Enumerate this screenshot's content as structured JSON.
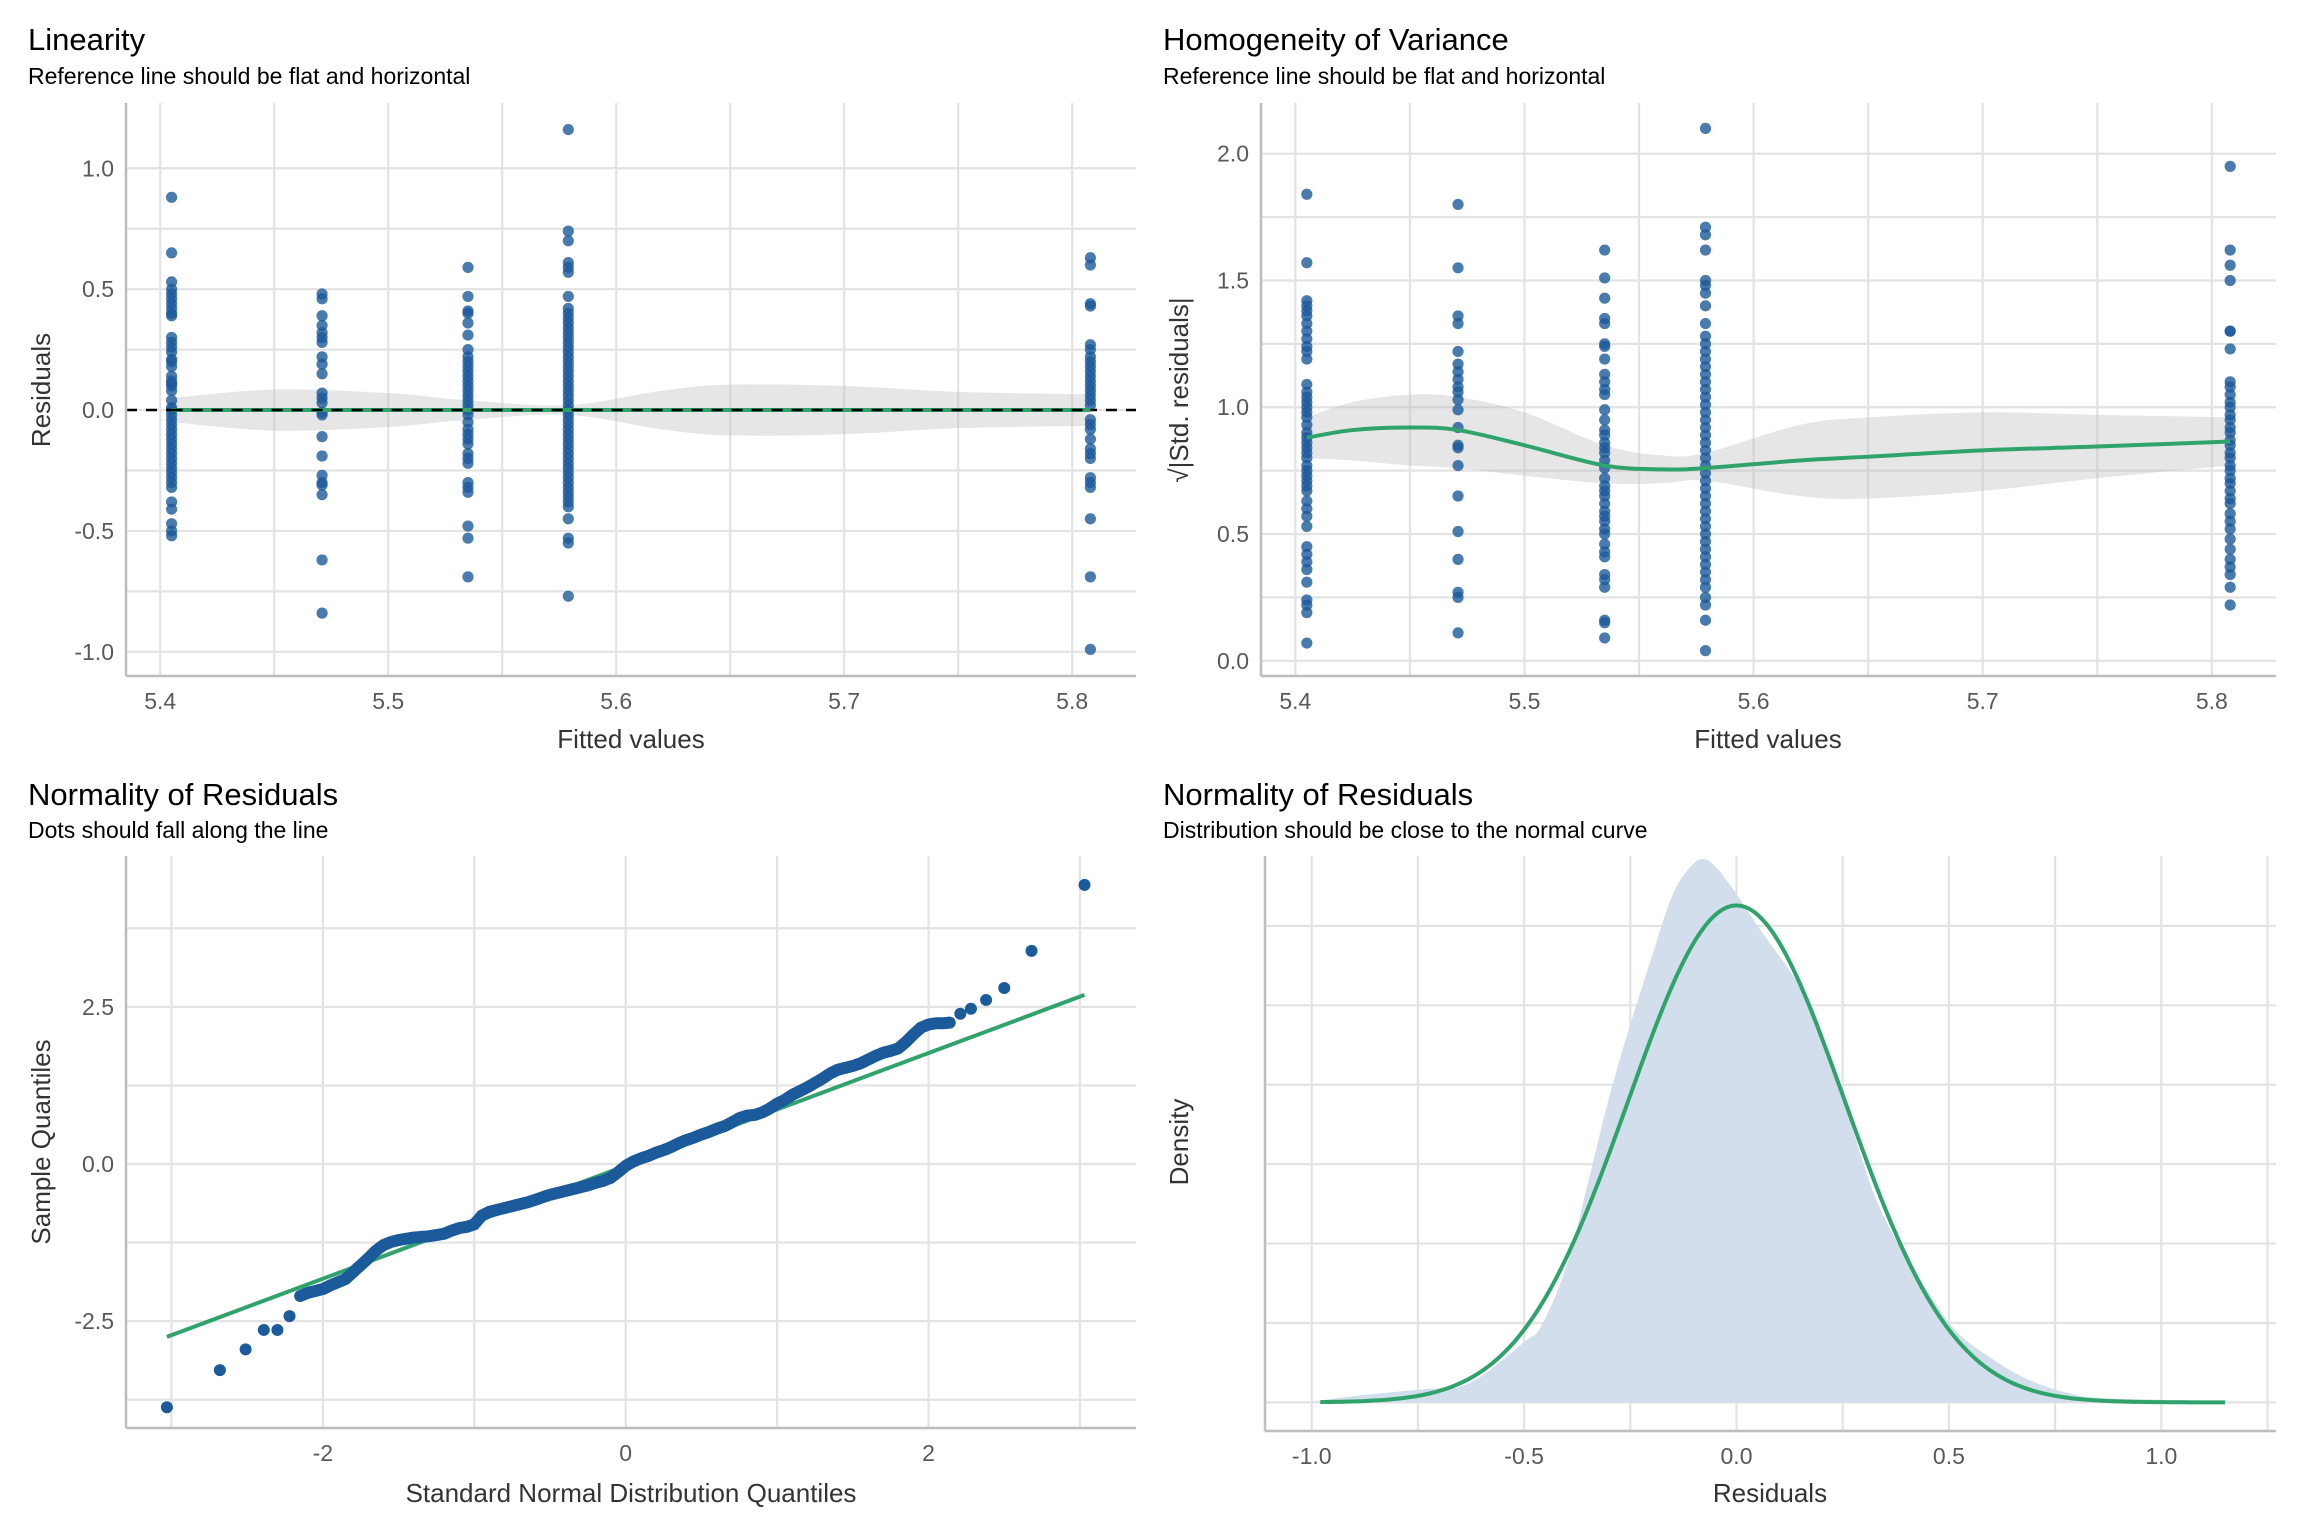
{
  "chart_data": [
    {
      "id": "linearity",
      "type": "scatter",
      "title": "Linearity",
      "subtitle": "Reference line should be flat and horizontal",
      "xlabel": "Fitted values",
      "ylabel": "Residuals",
      "xlim": [
        5.385,
        5.828
      ],
      "ylim": [
        -1.1,
        1.27
      ],
      "xticks": [
        5.4,
        5.5,
        5.6,
        5.7,
        5.8
      ],
      "xtick_labels": [
        "5.4",
        "5.5",
        "5.6",
        "5.7",
        "5.8"
      ],
      "xminor": [
        5.45,
        5.55,
        5.65,
        5.75
      ],
      "yticks": [
        -1.0,
        -0.5,
        0.0,
        0.5,
        1.0
      ],
      "ytick_labels": [
        "-1.0",
        "-0.5",
        "0.0",
        "0.5",
        "1.0"
      ],
      "yminor": [
        -0.75,
        -0.25,
        0.25,
        0.75
      ],
      "grid": true,
      "reference_line": {
        "y": 0,
        "style": "dashed",
        "color": "#000000"
      },
      "point_color": "#1b5a9b",
      "columns": [
        {
          "x": 5.405,
          "y": [
            0.88,
            0.65,
            0.53,
            0.5,
            0.48,
            0.46,
            0.44,
            0.42,
            0.4,
            0.39,
            0.3,
            0.28,
            0.26,
            0.24,
            0.21,
            0.2,
            0.18,
            0.14,
            0.12,
            0.11,
            0.1,
            0.08,
            0.04,
            0.01,
            0.0,
            -0.02,
            -0.04,
            -0.06,
            -0.08,
            -0.1,
            -0.12,
            -0.14,
            -0.16,
            -0.18,
            -0.2,
            -0.22,
            -0.24,
            -0.26,
            -0.28,
            -0.3,
            -0.32,
            -0.38,
            -0.41,
            -0.47,
            -0.5,
            -0.52
          ]
        },
        {
          "x": 5.471,
          "y": [
            0.48,
            0.46,
            0.39,
            0.35,
            0.32,
            0.3,
            0.28,
            0.22,
            0.19,
            0.15,
            0.07,
            0.05,
            0.03,
            -0.01,
            -0.02,
            -0.11,
            -0.19,
            -0.27,
            -0.3,
            -0.31,
            -0.35,
            -0.62,
            -0.84
          ]
        },
        {
          "x": 5.535,
          "y": [
            0.59,
            0.47,
            0.41,
            0.4,
            0.36,
            0.31,
            0.25,
            0.22,
            0.2,
            0.18,
            0.16,
            0.14,
            0.12,
            0.1,
            0.08,
            0.06,
            0.04,
            0.02,
            0.0,
            -0.02,
            -0.05,
            -0.08,
            -0.1,
            -0.12,
            -0.14,
            -0.18,
            -0.2,
            -0.22,
            -0.3,
            -0.32,
            -0.34,
            -0.48,
            -0.53,
            -0.69
          ]
        },
        {
          "x": 5.579,
          "y": [
            1.16,
            0.74,
            0.7,
            0.61,
            0.59,
            0.57,
            0.47,
            0.42,
            0.4,
            0.38,
            0.36,
            0.34,
            0.32,
            0.3,
            0.28,
            0.26,
            0.24,
            0.22,
            0.2,
            0.18,
            0.16,
            0.14,
            0.12,
            0.1,
            0.08,
            0.06,
            0.04,
            0.02,
            0.0,
            -0.02,
            -0.04,
            -0.06,
            -0.08,
            -0.1,
            -0.12,
            -0.14,
            -0.16,
            -0.18,
            -0.2,
            -0.22,
            -0.24,
            -0.26,
            -0.28,
            -0.3,
            -0.32,
            -0.34,
            -0.36,
            -0.38,
            -0.4,
            -0.45,
            -0.53,
            -0.55,
            -0.77
          ]
        },
        {
          "x": 5.808,
          "y": [
            0.63,
            0.6,
            0.44,
            0.43,
            0.27,
            0.25,
            0.22,
            0.2,
            0.18,
            0.16,
            0.14,
            0.12,
            0.1,
            0.08,
            0.06,
            0.04,
            0.02,
            -0.04,
            -0.06,
            -0.08,
            -0.12,
            -0.16,
            -0.18,
            -0.2,
            -0.28,
            -0.3,
            -0.32,
            -0.45,
            -0.69,
            -0.99
          ]
        }
      ],
      "smooth": {
        "color": "#2fa36b",
        "x": [
          5.405,
          5.45,
          5.5,
          5.535,
          5.579,
          5.62,
          5.65,
          5.7,
          5.75,
          5.808
        ],
        "y": [
          0,
          0,
          0,
          0,
          0,
          0,
          0,
          0,
          0,
          0
        ],
        "lower": [
          -0.05,
          -0.085,
          -0.07,
          -0.04,
          -0.02,
          -0.08,
          -0.105,
          -0.1,
          -0.075,
          -0.065
        ],
        "upper": [
          0.05,
          0.085,
          0.07,
          0.04,
          0.02,
          0.08,
          0.105,
          0.1,
          0.075,
          0.065
        ]
      }
    },
    {
      "id": "homogeneity",
      "type": "scatter",
      "title": "Homogeneity of Variance",
      "subtitle": "Reference line should be flat and horizontal",
      "xlabel": "Fitted values",
      "ylabel": "√|Std. residuals|",
      "xlim": [
        5.385,
        5.828
      ],
      "ylim": [
        -0.06,
        2.2
      ],
      "xticks": [
        5.4,
        5.5,
        5.6,
        5.7,
        5.8
      ],
      "xtick_labels": [
        "5.4",
        "5.5",
        "5.6",
        "5.7",
        "5.8"
      ],
      "xminor": [
        5.45,
        5.55,
        5.65,
        5.75
      ],
      "yticks": [
        0.0,
        0.5,
        1.0,
        1.5,
        2.0
      ],
      "ytick_labels": [
        "0.0",
        "0.5",
        "1.0",
        "1.5",
        "2.0"
      ],
      "yminor": [
        0.25,
        0.75,
        1.25,
        1.75
      ],
      "grid": true,
      "point_color": "#1b5a9b",
      "columns": [
        {
          "x": 5.405,
          "y": [
            1.84,
            1.57,
            1.42,
            1.4,
            1.38,
            1.36,
            1.33,
            1.3,
            1.27,
            1.24,
            1.22,
            1.19,
            1.09,
            1.06,
            1.04,
            1.02,
            1.0,
            0.98,
            0.96,
            0.93,
            0.9,
            0.88,
            0.86,
            0.84,
            0.82,
            0.8,
            0.77,
            0.75,
            0.73,
            0.71,
            0.69,
            0.67,
            0.63,
            0.6,
            0.57,
            0.53,
            0.45,
            0.42,
            0.39,
            0.36,
            0.31,
            0.24,
            0.22,
            0.19,
            0.07
          ]
        },
        {
          "x": 5.471,
          "y": [
            1.8,
            1.55,
            1.36,
            1.33,
            1.22,
            1.17,
            1.14,
            1.11,
            1.08,
            1.06,
            1.03,
            0.99,
            0.92,
            0.85,
            0.84,
            0.77,
            0.65,
            0.51,
            0.4,
            0.27,
            0.25,
            0.11
          ]
        },
        {
          "x": 5.535,
          "y": [
            1.62,
            1.51,
            1.43,
            1.35,
            1.33,
            1.25,
            1.24,
            1.19,
            1.13,
            1.1,
            1.07,
            1.05,
            0.99,
            0.95,
            0.91,
            0.89,
            0.86,
            0.84,
            0.82,
            0.79,
            0.76,
            0.72,
            0.69,
            0.67,
            0.65,
            0.62,
            0.59,
            0.57,
            0.55,
            0.52,
            0.5,
            0.46,
            0.43,
            0.41,
            0.34,
            0.32,
            0.29,
            0.16,
            0.15,
            0.09
          ]
        },
        {
          "x": 5.579,
          "y": [
            2.1,
            1.71,
            1.68,
            1.62,
            1.5,
            1.48,
            1.45,
            1.4,
            1.33,
            1.28,
            1.25,
            1.22,
            1.19,
            1.16,
            1.13,
            1.1,
            1.07,
            1.04,
            1.01,
            0.98,
            0.95,
            0.92,
            0.89,
            0.86,
            0.83,
            0.8,
            0.77,
            0.74,
            0.71,
            0.68,
            0.65,
            0.62,
            0.59,
            0.56,
            0.53,
            0.5,
            0.47,
            0.44,
            0.41,
            0.38,
            0.35,
            0.32,
            0.29,
            0.25,
            0.22,
            0.16,
            0.04
          ]
        },
        {
          "x": 5.808,
          "y": [
            1.95,
            1.62,
            1.56,
            1.5,
            1.3,
            1.3,
            1.23,
            1.1,
            1.08,
            1.05,
            1.02,
            1.0,
            0.97,
            0.95,
            0.92,
            0.9,
            0.87,
            0.85,
            0.82,
            0.8,
            0.77,
            0.75,
            0.72,
            0.7,
            0.67,
            0.64,
            0.62,
            0.58,
            0.55,
            0.52,
            0.48,
            0.44,
            0.4,
            0.37,
            0.34,
            0.29,
            0.22
          ]
        }
      ],
      "smooth": {
        "color": "#2fa36b",
        "x": [
          5.405,
          5.425,
          5.45,
          5.471,
          5.5,
          5.535,
          5.56,
          5.579,
          5.62,
          5.65,
          5.7,
          5.75,
          5.808
        ],
        "y": [
          0.88,
          0.91,
          0.92,
          0.91,
          0.85,
          0.77,
          0.755,
          0.76,
          0.79,
          0.805,
          0.83,
          0.845,
          0.865
        ],
        "lower": [
          0.8,
          0.79,
          0.77,
          0.76,
          0.73,
          0.7,
          0.7,
          0.71,
          0.65,
          0.64,
          0.67,
          0.72,
          0.77
        ],
        "upper": [
          0.96,
          1.02,
          1.05,
          1.04,
          0.98,
          0.85,
          0.81,
          0.82,
          0.93,
          0.96,
          0.98,
          0.97,
          0.96
        ]
      }
    },
    {
      "id": "qq",
      "type": "scatter",
      "title": "Normality of Residuals",
      "subtitle": "Dots should fall along the line",
      "xlabel": "Standard Normal Distribution Quantiles",
      "ylabel": "Sample Quantiles",
      "xlim": [
        -3.3,
        3.37
      ],
      "ylim": [
        -4.2,
        4.9
      ],
      "xticks": [
        -2,
        0,
        2
      ],
      "xtick_labels": [
        "-2",
        "0",
        "2"
      ],
      "xminor": [
        -3,
        -1,
        1,
        3
      ],
      "yticks": [
        -2.5,
        0.0,
        2.5
      ],
      "ytick_labels": [
        "-2.5",
        "0.0",
        "2.5"
      ],
      "yminor": [
        -3.75,
        -1.25,
        1.25,
        3.75
      ],
      "grid": true,
      "point_color": "#1b5a9b",
      "points": [
        [
          -3.03,
          -3.87
        ],
        [
          -2.68,
          -3.28
        ],
        [
          -2.51,
          -2.95
        ],
        [
          -2.39,
          -2.64
        ],
        [
          -2.3,
          -2.64
        ],
        [
          -2.22,
          -2.42
        ],
        [
          -2.15,
          -2.1
        ],
        [
          -2.1,
          -2.05
        ],
        [
          -2.05,
          -2.02
        ],
        [
          -2.0,
          -1.99
        ],
        [
          -1.95,
          -1.93
        ],
        [
          -1.9,
          -1.88
        ],
        [
          -1.85,
          -1.83
        ],
        [
          -1.8,
          -1.72
        ],
        [
          -1.75,
          -1.61
        ],
        [
          -1.7,
          -1.5
        ],
        [
          -1.65,
          -1.38
        ],
        [
          -1.6,
          -1.29
        ],
        [
          -1.55,
          -1.24
        ],
        [
          -1.5,
          -1.21
        ],
        [
          -1.45,
          -1.19
        ],
        [
          -1.4,
          -1.17
        ],
        [
          -1.35,
          -1.16
        ],
        [
          -1.3,
          -1.15
        ],
        [
          -1.25,
          -1.13
        ],
        [
          -1.2,
          -1.11
        ],
        [
          -1.15,
          -1.06
        ],
        [
          -1.1,
          -1.02
        ],
        [
          -1.05,
          -1.0
        ],
        [
          -1.0,
          -0.96
        ],
        [
          -0.95,
          -0.82
        ],
        [
          -0.9,
          -0.76
        ],
        [
          -0.85,
          -0.73
        ],
        [
          -0.8,
          -0.7
        ],
        [
          -0.75,
          -0.67
        ],
        [
          -0.7,
          -0.64
        ],
        [
          -0.65,
          -0.61
        ],
        [
          -0.6,
          -0.57
        ],
        [
          -0.55,
          -0.53
        ],
        [
          -0.5,
          -0.49
        ],
        [
          -0.45,
          -0.46
        ],
        [
          -0.4,
          -0.43
        ],
        [
          -0.35,
          -0.4
        ],
        [
          -0.3,
          -0.37
        ],
        [
          -0.25,
          -0.34
        ],
        [
          -0.2,
          -0.3
        ],
        [
          -0.15,
          -0.27
        ],
        [
          -0.1,
          -0.22
        ],
        [
          -0.05,
          -0.13
        ],
        [
          0.0,
          -0.03
        ],
        [
          0.05,
          0.04
        ],
        [
          0.1,
          0.09
        ],
        [
          0.15,
          0.13
        ],
        [
          0.2,
          0.18
        ],
        [
          0.25,
          0.22
        ],
        [
          0.3,
          0.27
        ],
        [
          0.35,
          0.33
        ],
        [
          0.4,
          0.38
        ],
        [
          0.45,
          0.42
        ],
        [
          0.5,
          0.47
        ],
        [
          0.55,
          0.51
        ],
        [
          0.6,
          0.56
        ],
        [
          0.65,
          0.6
        ],
        [
          0.7,
          0.66
        ],
        [
          0.75,
          0.73
        ],
        [
          0.8,
          0.77
        ],
        [
          0.85,
          0.78
        ],
        [
          0.9,
          0.82
        ],
        [
          0.95,
          0.88
        ],
        [
          1.0,
          0.96
        ],
        [
          1.05,
          1.02
        ],
        [
          1.1,
          1.1
        ],
        [
          1.15,
          1.16
        ],
        [
          1.2,
          1.22
        ],
        [
          1.25,
          1.29
        ],
        [
          1.3,
          1.36
        ],
        [
          1.35,
          1.44
        ],
        [
          1.4,
          1.5
        ],
        [
          1.45,
          1.53
        ],
        [
          1.5,
          1.56
        ],
        [
          1.55,
          1.6
        ],
        [
          1.6,
          1.66
        ],
        [
          1.65,
          1.72
        ],
        [
          1.7,
          1.77
        ],
        [
          1.75,
          1.8
        ],
        [
          1.8,
          1.84
        ],
        [
          1.85,
          1.94
        ],
        [
          1.9,
          2.06
        ],
        [
          1.95,
          2.17
        ],
        [
          2.0,
          2.22
        ],
        [
          2.05,
          2.24
        ],
        [
          2.1,
          2.24
        ],
        [
          2.14,
          2.25
        ],
        [
          2.21,
          2.39
        ],
        [
          2.28,
          2.47
        ],
        [
          2.38,
          2.61
        ],
        [
          2.5,
          2.8
        ],
        [
          2.68,
          3.39
        ],
        [
          3.03,
          4.44
        ]
      ],
      "reference": {
        "color": "#2fa36b",
        "x": [
          -3.03,
          3.03
        ],
        "y": [
          -2.75,
          2.69
        ]
      }
    },
    {
      "id": "density",
      "type": "area",
      "title": "Normality of Residuals",
      "subtitle": "Distribution should be close to the normal curve",
      "xlabel": "Residuals",
      "ylabel": "Density",
      "xlim": [
        -1.11,
        1.27
      ],
      "ylim": [
        -0.09,
        1.72
      ],
      "xticks": [
        -1.0,
        -0.5,
        0.0,
        0.5,
        1.0
      ],
      "xtick_labels": [
        "-1.0",
        "-0.5",
        "0.0",
        "0.5",
        "1.0"
      ],
      "xminor": [
        -0.75,
        -0.25,
        0.25,
        0.75,
        1.25
      ],
      "yticks": [
        0.0,
        0.5,
        1.0,
        1.5
      ],
      "ytick_labels": [
        "",
        "",
        "",
        ""
      ],
      "yminor": [
        0.25,
        0.75,
        1.25
      ],
      "grid": true,
      "fill_color": "#d0dcea",
      "empirical": {
        "x": [
          -1.0,
          -0.75,
          -0.63,
          -0.5,
          -0.46,
          -0.4,
          -0.35,
          -0.3,
          -0.25,
          -0.2,
          -0.15,
          -0.105,
          -0.076,
          -0.045,
          0.0,
          0.06,
          0.13,
          0.18,
          0.25,
          0.32,
          0.38,
          0.45,
          0.52,
          0.61,
          0.69,
          0.78,
          0.87,
          1.15
        ],
        "y": [
          0.01,
          0.04,
          0.06,
          0.19,
          0.24,
          0.43,
          0.69,
          0.96,
          1.19,
          1.4,
          1.6,
          1.69,
          1.71,
          1.68,
          1.6,
          1.48,
          1.35,
          1.24,
          0.96,
          0.67,
          0.5,
          0.35,
          0.22,
          0.13,
          0.07,
          0.03,
          0.013,
          0.005
        ]
      },
      "normal_curve": {
        "color": "#2fa36b",
        "mean": 0.0,
        "sd": 0.255,
        "x_range": [
          -0.98,
          1.15
        ]
      }
    }
  ]
}
